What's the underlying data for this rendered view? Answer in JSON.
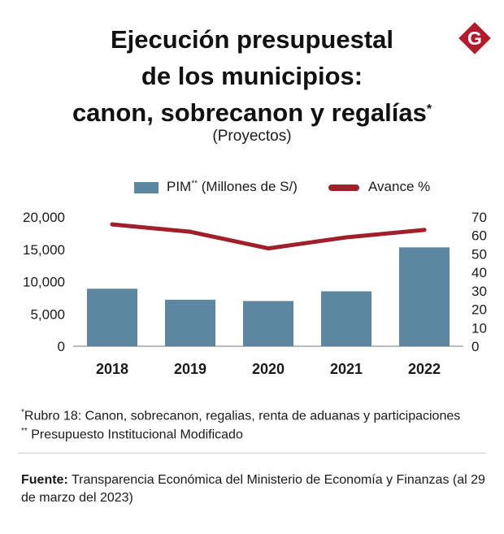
{
  "header": {
    "title_line1": "Ejecución presupuestal",
    "title_line2": "de los municipios:",
    "title_line3": "canon, sobrecanon y regalías",
    "title_mark": "*",
    "subtitle": "(Proyectos)",
    "logo_letter": "G"
  },
  "legend": {
    "bar_label": "PIM",
    "bar_mark": "**",
    "bar_unit": " (Millones de S/)",
    "line_label": "Avance %"
  },
  "chart_data": {
    "type": "bar+line",
    "categories": [
      "2018",
      "2019",
      "2020",
      "2021",
      "2022"
    ],
    "series": [
      {
        "name": "PIM** (Millones de S/)",
        "type": "bar",
        "axis": "left",
        "values": [
          8900,
          7200,
          7000,
          8500,
          15300
        ],
        "color": "#5b87a0"
      },
      {
        "name": "Avance %",
        "type": "line",
        "axis": "right",
        "values": [
          66,
          62,
          53,
          59,
          63
        ],
        "color": "#a11e2b"
      }
    ],
    "y_left": {
      "min": 0,
      "max": 20000,
      "ticks": [
        "0",
        "5,000",
        "10,000",
        "15,000",
        "20,000"
      ],
      "tick_values": [
        0,
        5000,
        10000,
        15000,
        20000
      ]
    },
    "y_right": {
      "min": 0,
      "max": 70,
      "ticks": [
        "0",
        "10",
        "20",
        "30",
        "40",
        "50",
        "60",
        "70"
      ],
      "tick_values": [
        0,
        10,
        20,
        30,
        40,
        50,
        60,
        70
      ]
    },
    "grid": false,
    "legend_position": "top"
  },
  "notes": {
    "note1_mark": "*",
    "note1": "Rubro 18: Canon, sobrecanon, regalias, renta de aduanas y participaciones",
    "note2_mark": "**",
    "note2": " Presupuesto Institucional Modificado"
  },
  "source": {
    "label": "Fuente:",
    "text": " Transparencia Económica del Ministerio de Economía y Finanzas (al 29 de marzo del 2023)"
  }
}
